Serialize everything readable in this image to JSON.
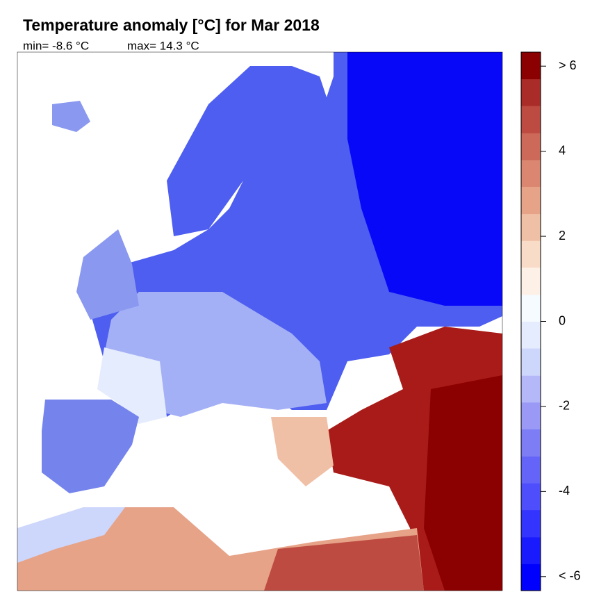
{
  "chart_data": {
    "type": "contour-map",
    "title": "Temperature anomaly [°C] for Mar 2018",
    "subtitle": [
      "min= -8.6 °C",
      "max= 14.3 °C"
    ],
    "levels": [
      -6.33,
      -5.7,
      -5.07,
      -4.43,
      -3.8,
      -3.17,
      -2.53,
      -1.9,
      -1.27,
      -0.63,
      0,
      0.63,
      1.27,
      1.9,
      2.53,
      3.17,
      3.8,
      4.43,
      5.07,
      5.7,
      6.33
    ],
    "colors": [
      "#0000ff",
      "#1a1aff",
      "#3434ff",
      "#4e4efc",
      "#6464f8",
      "#7d7df6",
      "#9a9af6",
      "#b4b8f8",
      "#cdd6fb",
      "#e4ecfd",
      "#f6fbff",
      "#fdf0e6",
      "#f8dcc8",
      "#f0c0a6",
      "#e6a388",
      "#da8670",
      "#cc6959",
      "#bd4b42",
      "#aa2c28",
      "#8b0000"
    ],
    "ylim": [
      -6.33,
      6.33
    ],
    "yticks": [
      {
        "value": -6,
        "label": "< -6"
      },
      -4,
      -2,
      0,
      2,
      4,
      {
        "value": 6,
        "label": "> 6"
      }
    ]
  }
}
